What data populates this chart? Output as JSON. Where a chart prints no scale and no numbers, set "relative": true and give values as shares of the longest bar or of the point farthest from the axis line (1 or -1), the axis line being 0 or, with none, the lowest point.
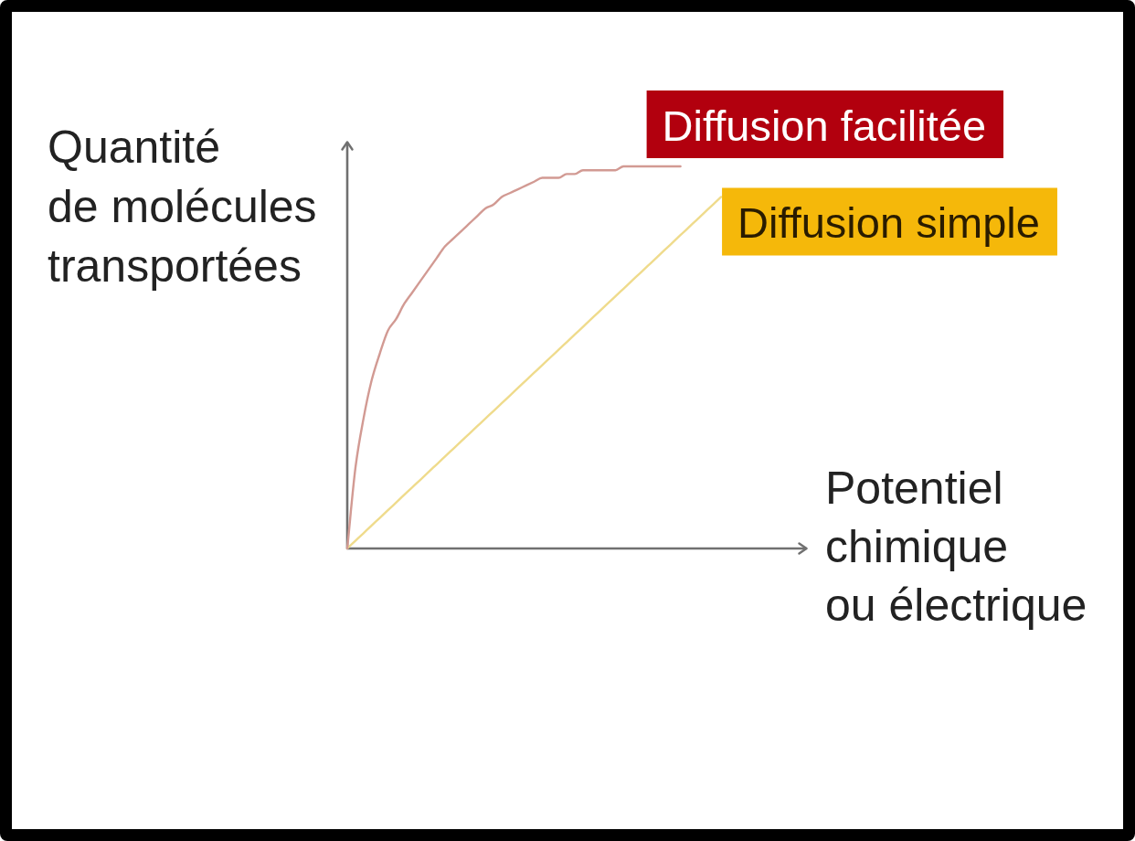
{
  "chart_data": {
    "type": "line",
    "relative": true,
    "tick_labels": false,
    "xlabel": "Potentiel\nchimique\nou électrique",
    "ylabel": "Quantité\nde molécules\ntransportées",
    "categories": [
      null,
      null,
      null,
      null,
      null,
      null,
      null,
      null,
      null,
      null,
      null,
      null,
      null,
      null,
      null,
      null,
      null,
      null,
      null,
      null,
      null,
      null,
      null,
      null,
      null,
      null,
      null,
      null,
      null,
      null,
      null,
      null,
      null,
      null,
      null,
      null,
      null,
      null,
      null,
      null,
      null,
      null,
      null,
      null,
      null,
      null,
      null,
      null,
      null,
      null,
      null,
      null,
      null,
      null,
      null,
      null,
      null
    ],
    "series": [
      {
        "name": "Diffusion facilitée",
        "color": "#d29a93",
        "values": [
          0,
          0.21,
          0.34,
          0.44,
          0.51,
          0.57,
          0.6,
          0.64,
          0.67,
          0.7,
          0.73,
          0.76,
          0.79,
          0.81,
          0.83,
          0.85,
          0.87,
          0.89,
          0.9,
          0.92,
          0.93,
          0.94,
          0.95,
          0.96,
          0.97,
          0.97,
          0.97,
          0.98,
          0.98,
          0.99,
          0.99,
          0.99,
          0.99,
          0.99,
          1,
          1,
          1,
          1,
          1,
          1,
          1,
          1,
          null,
          null,
          null,
          null,
          null,
          null,
          null,
          null,
          null,
          null,
          null,
          null,
          null,
          null,
          null
        ]
      },
      {
        "name": "Diffusion simple",
        "color": "#efdb8c",
        "values": [
          0,
          0.02,
          0.04,
          0.06,
          0.08,
          0.1,
          0.12,
          0.14,
          0.16,
          0.18,
          0.2,
          0.22,
          0.24,
          0.26,
          0.28,
          0.3,
          0.32,
          0.34,
          0.36,
          0.38,
          0.4,
          0.42,
          0.44,
          0.46,
          0.48,
          0.5,
          0.52,
          0.54,
          0.56,
          0.58,
          0.6,
          0.62,
          0.64,
          0.66,
          0.68,
          0.7,
          0.72,
          0.74,
          0.76,
          0.78,
          0.8,
          0.82,
          0.84,
          0.86,
          0.88,
          0.9,
          0.92,
          null,
          null,
          null,
          null,
          null,
          null,
          null,
          null,
          null,
          null
        ]
      }
    ]
  }
}
